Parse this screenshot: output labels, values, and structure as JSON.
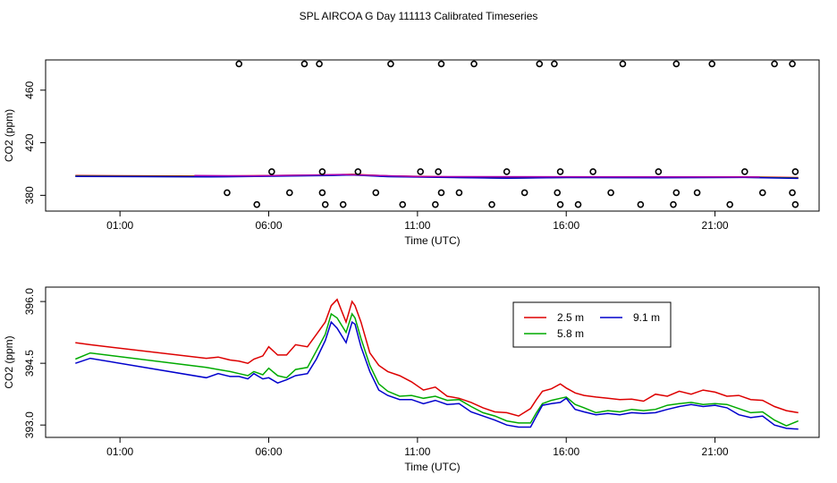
{
  "figure": {
    "title": "SPL AIRCOA G  Day 111113  Calibrated Timeseries"
  },
  "chart_data": [
    {
      "type": "scatter",
      "title": "SPL AIRCOA G  Day 111113  Calibrated Timeseries",
      "xlabel": "Time (UTC)",
      "ylabel": "CO2 (ppm)",
      "xlim": [
        -1.5,
        24.5
      ],
      "ylim": [
        368,
        483
      ],
      "x_ticks": [
        1,
        6,
        11,
        16,
        21
      ],
      "x_tick_labels": [
        "01:00",
        "06:00",
        "11:00",
        "16:00",
        "21:00"
      ],
      "y_ticks": [
        380,
        420,
        460
      ],
      "y_tick_labels": [
        "380",
        "420",
        "460"
      ],
      "markers": {
        "symbol": "open-circle",
        "y_levels": [
          480,
          398,
          382,
          373
        ],
        "points": [
          {
            "x": 4.6,
            "y": 382
          },
          {
            "x": 5.0,
            "y": 480
          },
          {
            "x": 5.6,
            "y": 373
          },
          {
            "x": 6.1,
            "y": 398
          },
          {
            "x": 6.7,
            "y": 382
          },
          {
            "x": 7.2,
            "y": 480
          },
          {
            "x": 7.7,
            "y": 480
          },
          {
            "x": 7.8,
            "y": 398
          },
          {
            "x": 7.8,
            "y": 382
          },
          {
            "x": 7.9,
            "y": 373
          },
          {
            "x": 8.5,
            "y": 373
          },
          {
            "x": 9.0,
            "y": 398
          },
          {
            "x": 9.6,
            "y": 382
          },
          {
            "x": 10.1,
            "y": 480
          },
          {
            "x": 10.5,
            "y": 373
          },
          {
            "x": 11.1,
            "y": 398
          },
          {
            "x": 11.6,
            "y": 373
          },
          {
            "x": 11.7,
            "y": 398
          },
          {
            "x": 11.8,
            "y": 480
          },
          {
            "x": 11.8,
            "y": 382
          },
          {
            "x": 12.4,
            "y": 382
          },
          {
            "x": 12.9,
            "y": 480
          },
          {
            "x": 13.5,
            "y": 373
          },
          {
            "x": 14.0,
            "y": 398
          },
          {
            "x": 14.6,
            "y": 382
          },
          {
            "x": 15.1,
            "y": 480
          },
          {
            "x": 15.6,
            "y": 480
          },
          {
            "x": 15.7,
            "y": 382
          },
          {
            "x": 15.8,
            "y": 398
          },
          {
            "x": 15.8,
            "y": 373
          },
          {
            "x": 16.4,
            "y": 373
          },
          {
            "x": 16.9,
            "y": 398
          },
          {
            "x": 17.5,
            "y": 382
          },
          {
            "x": 17.9,
            "y": 480
          },
          {
            "x": 18.5,
            "y": 373
          },
          {
            "x": 19.1,
            "y": 398
          },
          {
            "x": 19.6,
            "y": 373
          },
          {
            "x": 19.7,
            "y": 382
          },
          {
            "x": 19.7,
            "y": 480
          },
          {
            "x": 20.4,
            "y": 382
          },
          {
            "x": 20.9,
            "y": 480
          },
          {
            "x": 21.5,
            "y": 373
          },
          {
            "x": 22.0,
            "y": 398
          },
          {
            "x": 22.6,
            "y": 382
          },
          {
            "x": 23.0,
            "y": 480
          },
          {
            "x": 23.6,
            "y": 480
          },
          {
            "x": 23.6,
            "y": 382
          },
          {
            "x": 23.7,
            "y": 398
          },
          {
            "x": 23.7,
            "y": 373
          }
        ]
      },
      "series": [
        {
          "name": "2.5 m",
          "color": "#dd0000",
          "points": [
            [
              -0.5,
              395
            ],
            [
              4,
              394.6
            ],
            [
              8,
              395.5
            ],
            [
              8.8,
              396
            ],
            [
              10,
              394.8
            ],
            [
              14,
              393.3
            ],
            [
              16,
              393.8
            ],
            [
              19,
              393.9
            ],
            [
              22,
              394
            ],
            [
              23.8,
              393.5
            ]
          ]
        },
        {
          "name": "5.8 m",
          "color": "#00aa00",
          "points": [
            [
              -0.5,
              394.6
            ],
            [
              4,
              394.2
            ],
            [
              8,
              395.2
            ],
            [
              8.8,
              395.6
            ],
            [
              10,
              394.4
            ],
            [
              14,
              393.1
            ],
            [
              16,
              393.6
            ],
            [
              19,
              393.5
            ],
            [
              22,
              393.7
            ],
            [
              23.8,
              393.1
            ]
          ]
        },
        {
          "name": "9.1 m",
          "color": "#0000cc",
          "points": [
            [
              -0.5,
              394.4
            ],
            [
              4,
              394
            ],
            [
              8,
              395
            ],
            [
              8.8,
              395.5
            ],
            [
              10,
              394.2
            ],
            [
              14,
              393
            ],
            [
              16,
              393.5
            ],
            [
              19,
              393.3
            ],
            [
              22,
              393.6
            ],
            [
              23.8,
              392.9
            ]
          ]
        },
        {
          "name": "",
          "color": "#aa00aa",
          "points": [
            [
              3.5,
              395
            ],
            [
              5.5,
              394.8
            ],
            [
              8.5,
              395.8
            ],
            [
              11,
              394.3
            ],
            [
              20,
              394
            ],
            [
              22.5,
              393.9
            ]
          ]
        }
      ]
    },
    {
      "type": "line",
      "xlabel": "Time (UTC)",
      "ylabel": "CO2 (ppm)",
      "xlim": [
        -1.5,
        24.5
      ],
      "ylim": [
        392.7,
        396.35
      ],
      "x_ticks": [
        1,
        6,
        11,
        16,
        21
      ],
      "x_tick_labels": [
        "01:00",
        "06:00",
        "11:00",
        "16:00",
        "21:00"
      ],
      "y_ticks": [
        393.0,
        394.5,
        396.0
      ],
      "y_tick_labels": [
        "393.0",
        "394.5",
        "396.0"
      ],
      "legend": {
        "position": "top-right",
        "columns": 2
      },
      "series": [
        {
          "name": "2.5 m",
          "color": "#dd0000",
          "x": [
            -0.5,
            0,
            3.9,
            4.3,
            4.7,
            5.0,
            5.3,
            5.5,
            5.8,
            6.0,
            6.3,
            6.6,
            6.9,
            7.3,
            7.6,
            7.9,
            8.1,
            8.3,
            8.6,
            8.8,
            8.9,
            9.1,
            9.4,
            9.7,
            10.0,
            10.4,
            10.8,
            11.2,
            11.6,
            12.0,
            12.4,
            12.8,
            13.2,
            13.6,
            14.0,
            14.4,
            14.8,
            15.0,
            15.2,
            15.5,
            15.8,
            16.0,
            16.3,
            16.6,
            17.0,
            17.4,
            17.8,
            18.2,
            18.6,
            19.0,
            19.4,
            19.8,
            20.2,
            20.6,
            21.0,
            21.4,
            21.8,
            22.2,
            22.6,
            23.0,
            23.4,
            23.8
          ],
          "y": [
            395.0,
            394.95,
            394.62,
            394.65,
            394.58,
            394.55,
            394.5,
            394.6,
            394.68,
            394.9,
            394.7,
            394.7,
            394.95,
            394.9,
            395.2,
            395.5,
            395.9,
            396.05,
            395.5,
            396.0,
            395.9,
            395.5,
            394.75,
            394.45,
            394.3,
            394.2,
            394.05,
            393.85,
            393.92,
            393.7,
            393.65,
            393.55,
            393.42,
            393.32,
            393.3,
            393.22,
            393.4,
            393.62,
            393.82,
            393.88,
            394.0,
            393.9,
            393.78,
            393.72,
            393.68,
            393.65,
            393.62,
            393.63,
            393.58,
            393.75,
            393.7,
            393.82,
            393.75,
            393.85,
            393.8,
            393.7,
            393.72,
            393.62,
            393.6,
            393.45,
            393.35,
            393.3
          ]
        },
        {
          "name": "5.8 m",
          "color": "#00aa00",
          "x": [
            -0.5,
            0,
            3.9,
            4.3,
            4.7,
            5.0,
            5.3,
            5.5,
            5.8,
            6.0,
            6.3,
            6.6,
            6.9,
            7.3,
            7.6,
            7.9,
            8.1,
            8.3,
            8.6,
            8.8,
            8.9,
            9.1,
            9.4,
            9.7,
            10.0,
            10.4,
            10.8,
            11.2,
            11.6,
            12.0,
            12.4,
            12.8,
            13.2,
            13.6,
            14.0,
            14.4,
            14.8,
            15.0,
            15.2,
            15.5,
            15.8,
            16.0,
            16.3,
            16.6,
            17.0,
            17.4,
            17.8,
            18.2,
            18.6,
            19.0,
            19.4,
            19.8,
            20.2,
            20.6,
            21.0,
            21.4,
            21.8,
            22.2,
            22.6,
            23.0,
            23.4,
            23.8
          ],
          "y": [
            394.6,
            394.75,
            394.4,
            394.35,
            394.3,
            394.25,
            394.2,
            394.3,
            394.22,
            394.38,
            394.2,
            394.15,
            394.35,
            394.4,
            394.8,
            395.2,
            395.7,
            395.6,
            395.25,
            395.7,
            395.6,
            395.1,
            394.45,
            394.0,
            393.82,
            393.7,
            393.72,
            393.65,
            393.7,
            393.6,
            393.62,
            393.45,
            393.3,
            393.22,
            393.1,
            393.05,
            393.05,
            393.3,
            393.52,
            393.6,
            393.65,
            393.68,
            393.5,
            393.42,
            393.3,
            393.35,
            393.32,
            393.38,
            393.35,
            393.38,
            393.48,
            393.52,
            393.55,
            393.5,
            393.52,
            393.5,
            393.4,
            393.3,
            393.32,
            393.12,
            392.98,
            393.1
          ]
        },
        {
          "name": "9.1 m",
          "color": "#0000cc",
          "x": [
            -0.5,
            0,
            3.9,
            4.3,
            4.7,
            5.0,
            5.3,
            5.5,
            5.8,
            6.0,
            6.3,
            6.6,
            6.9,
            7.3,
            7.6,
            7.9,
            8.1,
            8.3,
            8.6,
            8.8,
            8.9,
            9.1,
            9.4,
            9.7,
            10.0,
            10.4,
            10.8,
            11.2,
            11.6,
            12.0,
            12.4,
            12.8,
            13.2,
            13.6,
            14.0,
            14.4,
            14.8,
            15.0,
            15.2,
            15.5,
            15.8,
            16.0,
            16.3,
            16.6,
            17.0,
            17.4,
            17.8,
            18.2,
            18.6,
            19.0,
            19.4,
            19.8,
            20.2,
            20.6,
            21.0,
            21.4,
            21.8,
            22.2,
            22.6,
            23.0,
            23.4,
            23.8
          ],
          "y": [
            394.5,
            394.62,
            394.15,
            394.25,
            394.18,
            394.18,
            394.12,
            394.25,
            394.12,
            394.15,
            394.02,
            394.1,
            394.2,
            394.25,
            394.6,
            395.05,
            395.5,
            395.35,
            395.0,
            395.5,
            395.45,
            394.9,
            394.3,
            393.85,
            393.72,
            393.62,
            393.62,
            393.52,
            393.6,
            393.5,
            393.52,
            393.32,
            393.22,
            393.12,
            393.0,
            392.95,
            392.95,
            393.22,
            393.48,
            393.52,
            393.55,
            393.65,
            393.38,
            393.32,
            393.25,
            393.28,
            393.25,
            393.3,
            393.28,
            393.3,
            393.38,
            393.45,
            393.5,
            393.45,
            393.48,
            393.42,
            393.25,
            393.18,
            393.22,
            393.0,
            392.92,
            392.9
          ]
        }
      ]
    }
  ]
}
